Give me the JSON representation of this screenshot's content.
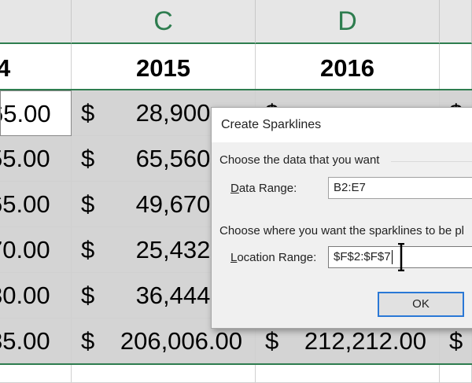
{
  "spreadsheet": {
    "column_headers": [
      "C",
      "D"
    ],
    "year_headers": [
      "4",
      "2015",
      "2016"
    ],
    "currency_symbol": "$",
    "col_b_values": [
      "65.00",
      "55.00",
      "65.00",
      "70.00",
      "30.00",
      "85.00"
    ],
    "col_c_values": [
      "28,900.",
      "65,560.",
      "49,670.",
      "25,432.",
      "36,444.",
      "206,006.00"
    ],
    "col_d_last_value": "212,212.00"
  },
  "dialog": {
    "title": "Create Sparklines",
    "section1_label": "Choose the data that you want",
    "data_range_label_key": "D",
    "data_range_label_rest": "ata Range:",
    "data_range_value": "B2:E7",
    "section2_label": "Choose where you want the sparklines to be pl",
    "location_range_label_key": "L",
    "location_range_label_rest": "ocation Range:",
    "location_range_value": "$F$2:$F$7",
    "ok_label": "OK"
  }
}
